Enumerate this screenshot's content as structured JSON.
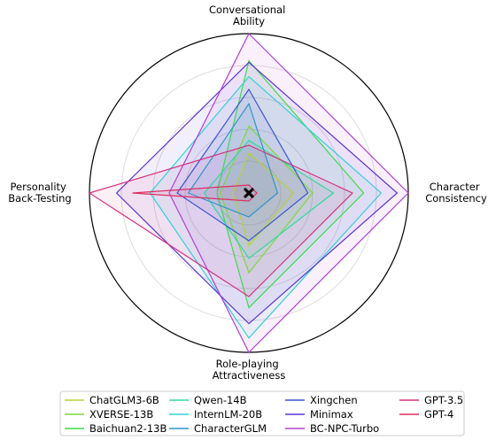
{
  "chart_data": {
    "type": "radar",
    "axes": [
      {
        "lines": [
          "Conversational",
          "Ability"
        ]
      },
      {
        "lines": [
          "Character",
          "Consistency"
        ]
      },
      {
        "lines": [
          "Role-playing",
          "Attractiveness"
        ]
      },
      {
        "lines": [
          "Personality",
          "Back-Testing"
        ]
      }
    ],
    "rlim": [
      0,
      1
    ],
    "grid": true,
    "legend_position": "bottom",
    "center_marker": "x",
    "series": [
      {
        "name": "ChatGLM3-6B",
        "color": "#b5d334",
        "values": [
          0.25,
          0.28,
          0.33,
          0.1
        ]
      },
      {
        "name": "XVERSE-13B",
        "color": "#7dd93a",
        "values": [
          0.42,
          0.4,
          0.5,
          0.18
        ]
      },
      {
        "name": "Baichuan2-13B",
        "color": "#3fd94c",
        "values": [
          0.83,
          0.72,
          0.72,
          0.2
        ]
      },
      {
        "name": "Qwen-14B",
        "color": "#2ed9a0",
        "values": [
          0.33,
          0.53,
          0.41,
          0.28
        ]
      },
      {
        "name": "InternLM-20B",
        "color": "#33d0d6",
        "values": [
          0.73,
          0.83,
          0.91,
          0.62
        ]
      },
      {
        "name": "CharacterGLM",
        "color": "#2f95c8",
        "values": [
          0.56,
          0.18,
          0.15,
          0.38
        ]
      },
      {
        "name": "Xingchen",
        "color": "#3a55cf",
        "values": [
          0.65,
          0.37,
          0.3,
          0.45
        ]
      },
      {
        "name": "Minimax",
        "color": "#5b34d4",
        "values": [
          0.82,
          0.93,
          0.82,
          0.83
        ]
      },
      {
        "name": "BC-NPC-Turbo",
        "color": "#b041d9",
        "values": [
          1.0,
          1.0,
          1.0,
          0.5
        ]
      },
      {
        "name": "GPT-3.5",
        "color": "#d6307f",
        "values": [
          0.3,
          0.65,
          0.65,
          1.0
        ]
      },
      {
        "name": "GPT-4",
        "color": "#de2d60",
        "values": [
          0.05,
          0.05,
          0.05,
          0.73
        ]
      }
    ]
  }
}
